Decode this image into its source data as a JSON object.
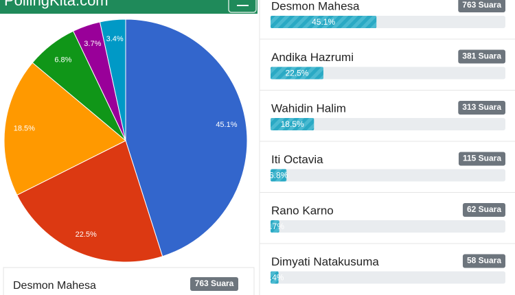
{
  "header": {
    "title": "PollingKita.com"
  },
  "chart_data": {
    "type": "pie",
    "categories": [
      "Desmon Mahesa",
      "Andika Hazrumi",
      "Wahidin Halim",
      "Iti Octavia",
      "Rano Karno",
      "Dimyati Natakusuma"
    ],
    "values": [
      45.1,
      22.5,
      18.5,
      6.8,
      3.7,
      3.4
    ],
    "value_labels": [
      "45.1%",
      "22.5%",
      "18.5%",
      "6.8%",
      "3.7%",
      "3.4%"
    ],
    "colors": [
      "#3366cc",
      "#dc3912",
      "#ff9900",
      "#109618",
      "#990099",
      "#0099c6"
    ],
    "votes": [
      "763 Suara",
      "381 Suara",
      "313 Suara",
      "115 Suara",
      "62 Suara",
      "58 Suara"
    ]
  }
}
